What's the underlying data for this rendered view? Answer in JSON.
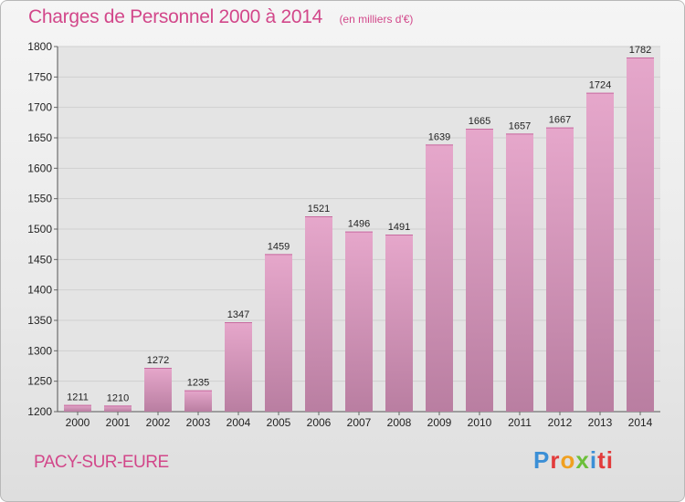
{
  "header": {
    "title": "Charges de Personnel 2000 à 2014",
    "subtitle": "(en milliers d'€)"
  },
  "footer": {
    "place": "PACY-SUR-EURE",
    "logo_text": "Proxiti"
  },
  "colors": {
    "accent": "#d2478a",
    "bar_top": "#e6a7cb",
    "bar_bottom": "#b97ea1"
  },
  "chart_data": {
    "type": "bar",
    "title": "Charges de Personnel 2000 à 2014",
    "subtitle": "(en milliers d'€)",
    "xlabel": "",
    "ylabel": "",
    "categories": [
      "2000",
      "2001",
      "2002",
      "2003",
      "2004",
      "2005",
      "2006",
      "2007",
      "2008",
      "2009",
      "2010",
      "2011",
      "2012",
      "2013",
      "2014"
    ],
    "values": [
      1211,
      1210,
      1272,
      1235,
      1347,
      1459,
      1521,
      1496,
      1491,
      1639,
      1665,
      1657,
      1667,
      1724,
      1782
    ],
    "ylim": [
      1200,
      1800
    ],
    "yticks": [
      1200,
      1250,
      1300,
      1350,
      1400,
      1450,
      1500,
      1550,
      1600,
      1650,
      1700,
      1750,
      1800
    ],
    "grid": true,
    "legend": "none"
  }
}
